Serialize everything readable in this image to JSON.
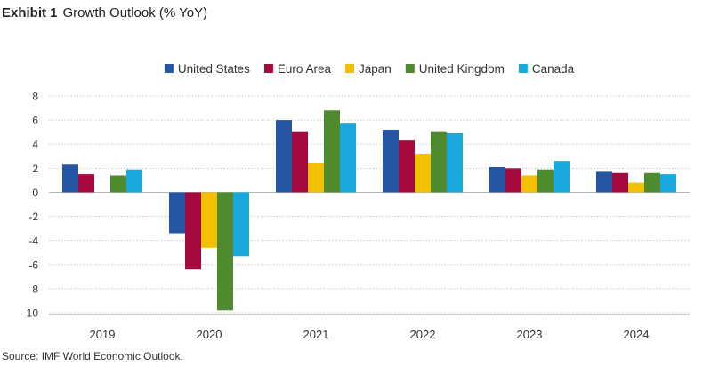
{
  "header": {
    "exhibit_label": "Exhibit 1",
    "title": "Growth Outlook (% YoY)"
  },
  "footer": {
    "source": "Source: IMF World Economic Outlook."
  },
  "chart_data": {
    "type": "bar",
    "title": "Growth Outlook (% YoY)",
    "xlabel": "",
    "ylabel": "",
    "categories": [
      "2019",
      "2020",
      "2021",
      "2022",
      "2023",
      "2024"
    ],
    "ylim": [
      -10,
      8
    ],
    "yticks": [
      8,
      6,
      4,
      2,
      0,
      -2,
      -4,
      -6,
      -8,
      -10
    ],
    "grid": "horizontal-dotted",
    "legend_position": "top-center",
    "series": [
      {
        "name": "United States",
        "color": "#2456A4",
        "values": [
          2.3,
          -3.4,
          6.0,
          5.2,
          2.1,
          1.7
        ]
      },
      {
        "name": "Euro Area",
        "color": "#A6093D",
        "values": [
          1.5,
          -6.4,
          5.0,
          4.3,
          2.0,
          1.6
        ]
      },
      {
        "name": "Japan",
        "color": "#F2C000",
        "values": [
          0.0,
          -4.6,
          2.4,
          3.2,
          1.4,
          0.8
        ]
      },
      {
        "name": "United Kingdom",
        "color": "#4E8A2E",
        "values": [
          1.4,
          -9.8,
          6.8,
          5.0,
          1.9,
          1.6
        ]
      },
      {
        "name": "Canada",
        "color": "#19A9DE",
        "values": [
          1.9,
          -5.3,
          5.7,
          4.9,
          2.6,
          1.5
        ]
      }
    ]
  }
}
